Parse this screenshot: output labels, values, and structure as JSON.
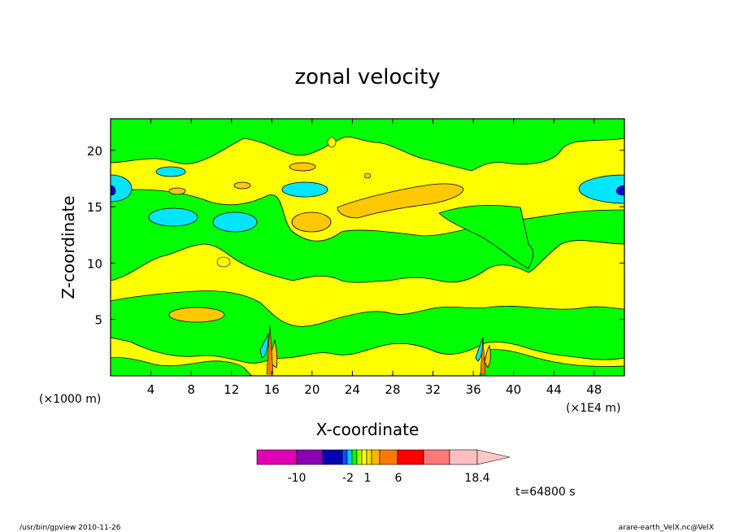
{
  "chart_data": {
    "type": "heatmap",
    "title": "zonal velocity",
    "xlabel": "X-coordinate",
    "ylabel": "Z-coordinate",
    "x_unit_label": "(×1E4 m)",
    "y_unit_label": "(×1000 m)",
    "x_ticks": [
      4,
      8,
      12,
      16,
      20,
      24,
      28,
      32,
      36,
      40,
      44,
      48
    ],
    "y_ticks": [
      5,
      10,
      15,
      20
    ],
    "xlim": [
      0,
      51
    ],
    "ylim": [
      0,
      22.8
    ],
    "colorbar": {
      "colors": [
        "#e100b4",
        "#8c00b4",
        "#0000b4",
        "#0050ff",
        "#00c8ff",
        "#00ff00",
        "#b4ff00",
        "#ffff00",
        "#ffdc00",
        "#ffb400",
        "#ff7800",
        "#ff0000",
        "#ff7878",
        "#ffbebe",
        "#ffc8c8"
      ],
      "labels": [
        "-10",
        "-2",
        "1",
        "6",
        "18.4"
      ]
    },
    "time_label": "t=64800 s",
    "footer_left": "/usr/bin/gpview   2010-11-26",
    "footer_right": "arare-earth_VelX.nc@VelX"
  }
}
